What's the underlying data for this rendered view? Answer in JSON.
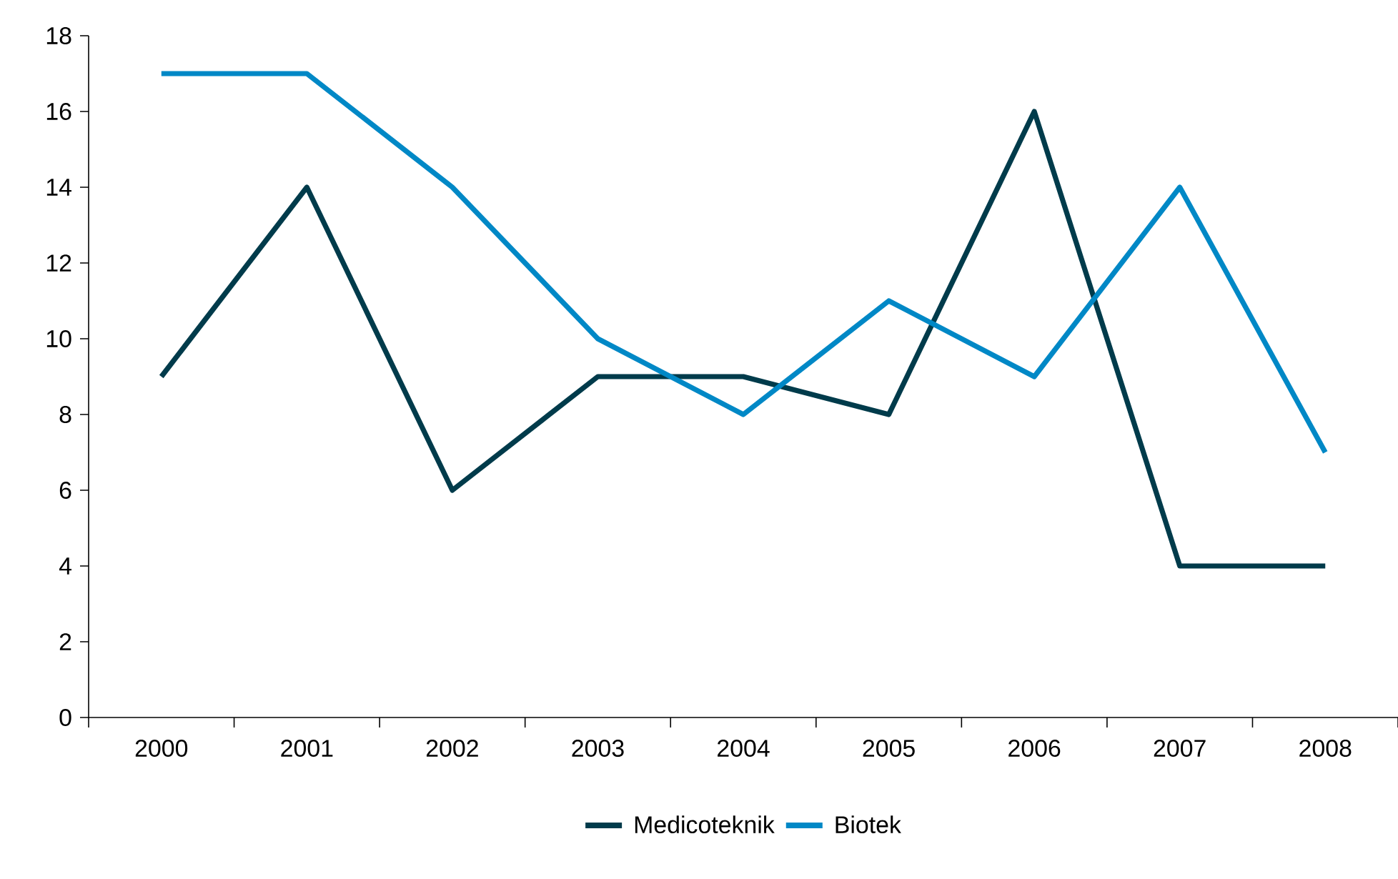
{
  "chart_data": {
    "type": "line",
    "categories": [
      "2000",
      "2001",
      "2002",
      "2003",
      "2004",
      "2005",
      "2006",
      "2007",
      "2008"
    ],
    "series": [
      {
        "name": "Medicoteknik",
        "color": "#003b4b",
        "values": [
          9,
          14,
          6,
          9,
          9,
          8,
          16,
          4,
          4
        ]
      },
      {
        "name": "Biotek",
        "color": "#0088c6",
        "values": [
          17,
          17,
          14,
          10,
          8,
          11,
          9,
          14,
          7
        ]
      }
    ],
    "ylim": [
      0,
      18
    ],
    "yticks": [
      0,
      2,
      4,
      6,
      8,
      10,
      12,
      14,
      16,
      18
    ],
    "legend": "bottom"
  }
}
